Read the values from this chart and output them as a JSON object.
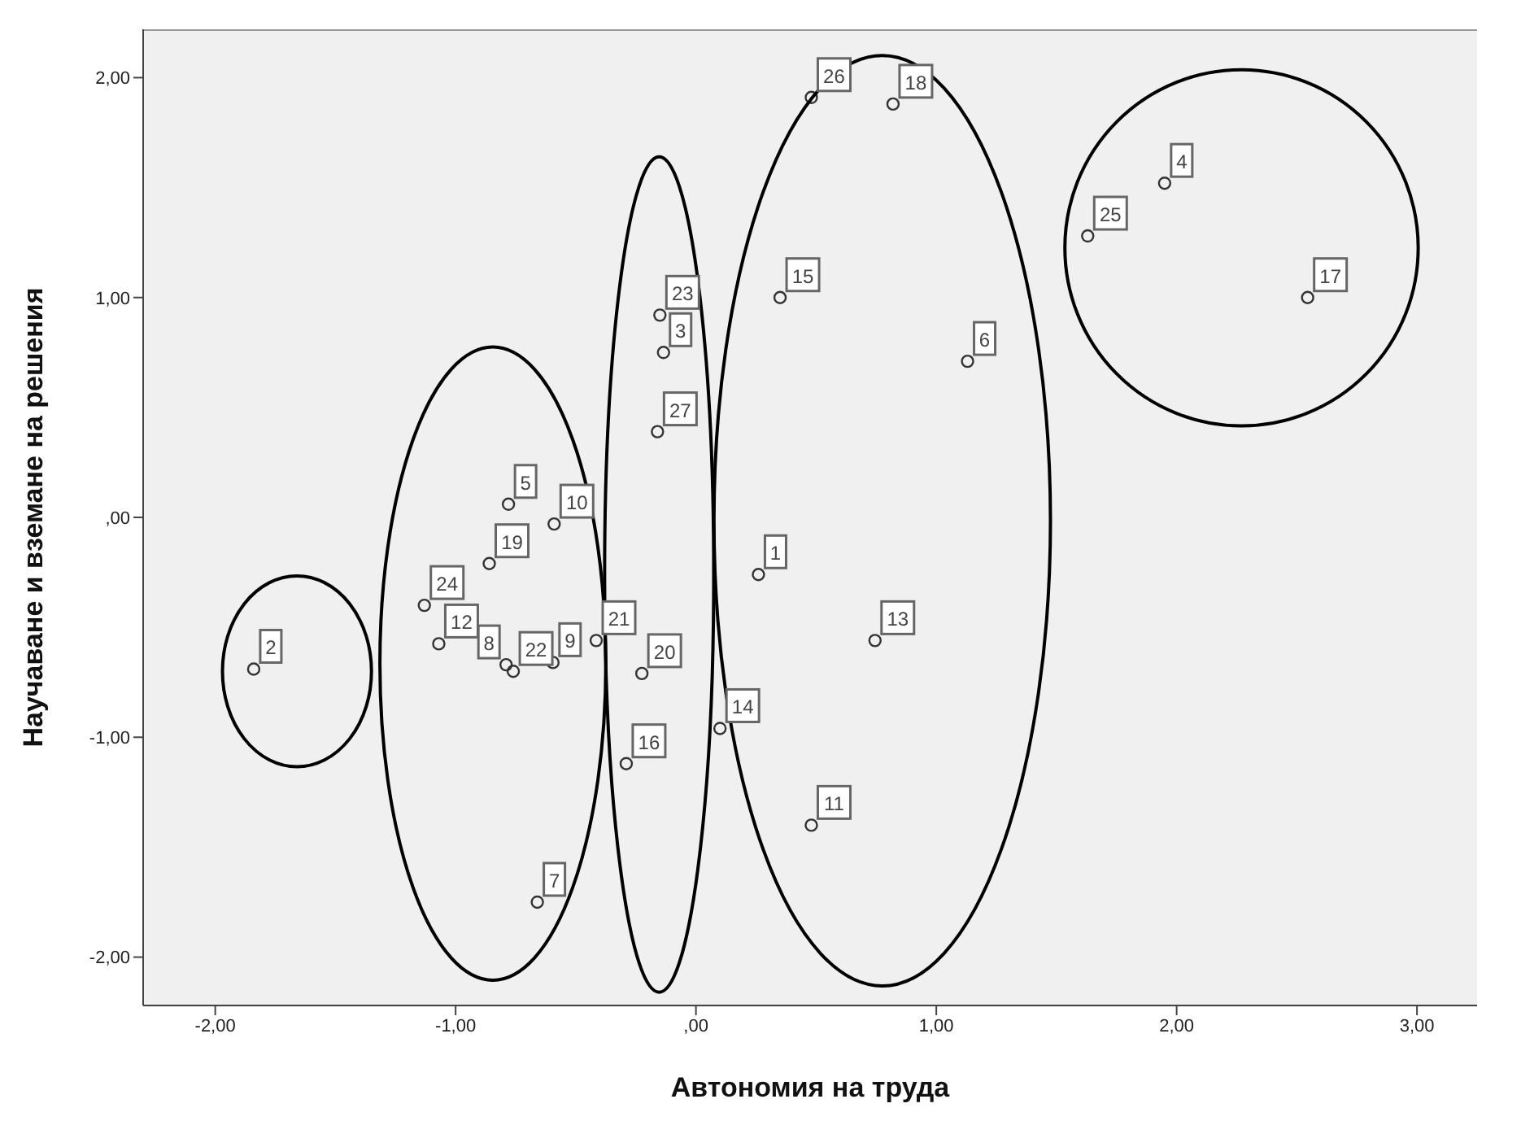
{
  "chart_data": {
    "type": "scatter",
    "xlabel": "Автономия на труда",
    "ylabel": "Научаване и вземане на решения",
    "xlim": [
      -2.3,
      3.25
    ],
    "ylim": [
      -2.22,
      2.22
    ],
    "xticks": [
      {
        "value": -2,
        "label": "-2,00"
      },
      {
        "value": -1,
        "label": "-1,00"
      },
      {
        "value": 0,
        "label": ",00"
      },
      {
        "value": 1,
        "label": "1,00"
      },
      {
        "value": 2,
        "label": "2,00"
      },
      {
        "value": 3,
        "label": "3,00"
      }
    ],
    "yticks": [
      {
        "value": -2,
        "label": "-2,00"
      },
      {
        "value": -1,
        "label": "-1,00"
      },
      {
        "value": 0,
        "label": ",00"
      },
      {
        "value": 1,
        "label": "1,00"
      },
      {
        "value": 2,
        "label": "2,00"
      }
    ],
    "grid": false,
    "legend": false,
    "marker": "circle",
    "series": [
      {
        "color": "#333333",
        "x": [
          0.26,
          -1.84,
          -0.135,
          1.95,
          -0.78,
          1.13,
          -0.66,
          -0.79,
          -0.595,
          -0.59,
          0.48,
          -1.07,
          0.745,
          0.1,
          0.35,
          -0.29,
          2.545,
          0.82,
          -0.86,
          -0.225,
          -0.415,
          -0.76,
          -0.15,
          -1.13,
          1.63,
          -0.16,
          0.48
        ],
        "values": [
          -0.26,
          -0.69,
          0.75,
          1.52,
          0.06,
          0.71,
          -1.75,
          -0.67,
          -0.66,
          -0.03,
          -1.4,
          -0.575,
          -0.56,
          -0.96,
          1.0,
          -1.12,
          1.0,
          1.88,
          -0.21,
          -0.71,
          -0.56,
          -0.7,
          0.92,
          -0.4,
          1.28,
          0.39,
          1.91
        ]
      }
    ],
    "annotations": [
      {
        "text": "1",
        "x": 0.26,
        "y": -0.26
      },
      {
        "text": "2",
        "x": -1.84,
        "y": -0.69
      },
      {
        "text": "3",
        "x": -0.135,
        "y": 0.75
      },
      {
        "text": "4",
        "x": 1.95,
        "y": 1.52
      },
      {
        "text": "5",
        "x": -0.78,
        "y": 0.06
      },
      {
        "text": "6",
        "x": 1.13,
        "y": 0.71
      },
      {
        "text": "7",
        "x": -0.66,
        "y": -1.75
      },
      {
        "text": "8",
        "x": -0.79,
        "y": -0.67
      },
      {
        "text": "9",
        "x": -0.595,
        "y": -0.66
      },
      {
        "text": "10",
        "x": -0.59,
        "y": -0.03
      },
      {
        "text": "11",
        "x": 0.48,
        "y": -1.4
      },
      {
        "text": "12",
        "x": -1.07,
        "y": -0.575
      },
      {
        "text": "13",
        "x": 0.745,
        "y": -0.56
      },
      {
        "text": "14",
        "x": 0.1,
        "y": -0.96
      },
      {
        "text": "15",
        "x": 0.35,
        "y": 1.0
      },
      {
        "text": "16",
        "x": -0.29,
        "y": -1.12
      },
      {
        "text": "17",
        "x": 2.545,
        "y": 1.0
      },
      {
        "text": "18",
        "x": 0.82,
        "y": 1.88
      },
      {
        "text": "19",
        "x": -0.86,
        "y": -0.21
      },
      {
        "text": "20",
        "x": -0.225,
        "y": -0.71
      },
      {
        "text": "21",
        "x": -0.415,
        "y": -0.56
      },
      {
        "text": "22",
        "x": -0.76,
        "y": -0.7
      },
      {
        "text": "23",
        "x": -0.15,
        "y": 0.92
      },
      {
        "text": "24",
        "x": -1.13,
        "y": -0.4
      },
      {
        "text": "25",
        "x": 1.63,
        "y": 1.28
      },
      {
        "text": "27",
        "x": -0.16,
        "y": 0.39
      },
      {
        "text": "26",
        "x": 0.48,
        "y": 1.91
      }
    ]
  }
}
